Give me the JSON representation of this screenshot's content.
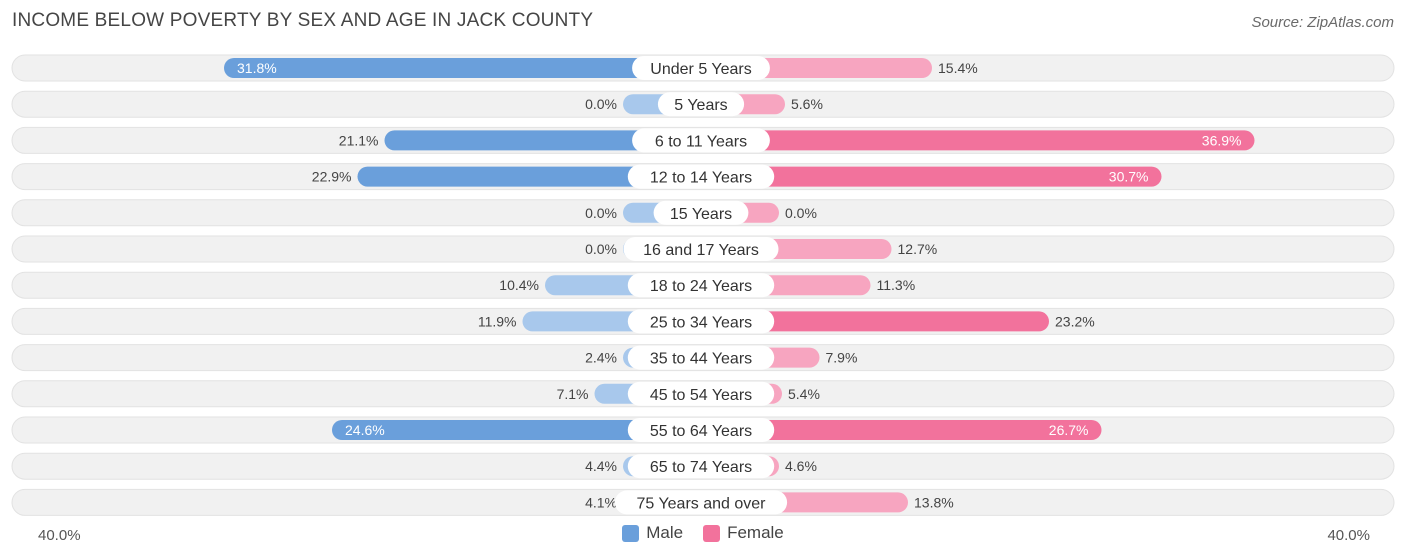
{
  "title": "INCOME BELOW POVERTY BY SEX AND AGE IN JACK COUNTY",
  "source": "Source: ZipAtlas.com",
  "colors": {
    "male": "#6a9fdb",
    "male_light": "#a8c8ec",
    "female": "#f2729c",
    "female_light": "#f7a5c0",
    "row_bg": "#f1f1f1"
  },
  "legend": {
    "male": "Male",
    "female": "Female"
  },
  "axis": {
    "left_label": "40.0%",
    "right_label": "40.0%"
  },
  "chart_data": {
    "type": "bar",
    "orientation": "horizontal-diverging",
    "title": "INCOME BELOW POVERTY BY SEX AND AGE IN JACK COUNTY",
    "xlim": [
      -40,
      40
    ],
    "categories": [
      "Under 5 Years",
      "5 Years",
      "6 to 11 Years",
      "12 to 14 Years",
      "15 Years",
      "16 and 17 Years",
      "18 to 24 Years",
      "25 to 34 Years",
      "35 to 44 Years",
      "45 to 54 Years",
      "55 to 64 Years",
      "65 to 74 Years",
      "75 Years and over"
    ],
    "series": [
      {
        "name": "Male",
        "values": [
          31.8,
          0.0,
          21.1,
          22.9,
          0.0,
          0.0,
          10.4,
          11.9,
          2.4,
          7.1,
          24.6,
          4.4,
          4.1
        ],
        "labels": [
          "31.8%",
          "0.0%",
          "21.1%",
          "22.9%",
          "0.0%",
          "0.0%",
          "10.4%",
          "11.9%",
          "2.4%",
          "7.1%",
          "24.6%",
          "4.4%",
          "4.1%"
        ]
      },
      {
        "name": "Female",
        "values": [
          15.4,
          5.6,
          36.9,
          30.7,
          0.0,
          12.7,
          11.3,
          23.2,
          7.9,
          5.4,
          26.7,
          4.6,
          13.8
        ],
        "labels": [
          "15.4%",
          "5.6%",
          "36.9%",
          "30.7%",
          "0.0%",
          "12.7%",
          "11.3%",
          "23.2%",
          "7.9%",
          "5.4%",
          "26.7%",
          "4.6%",
          "13.8%"
        ]
      }
    ]
  }
}
